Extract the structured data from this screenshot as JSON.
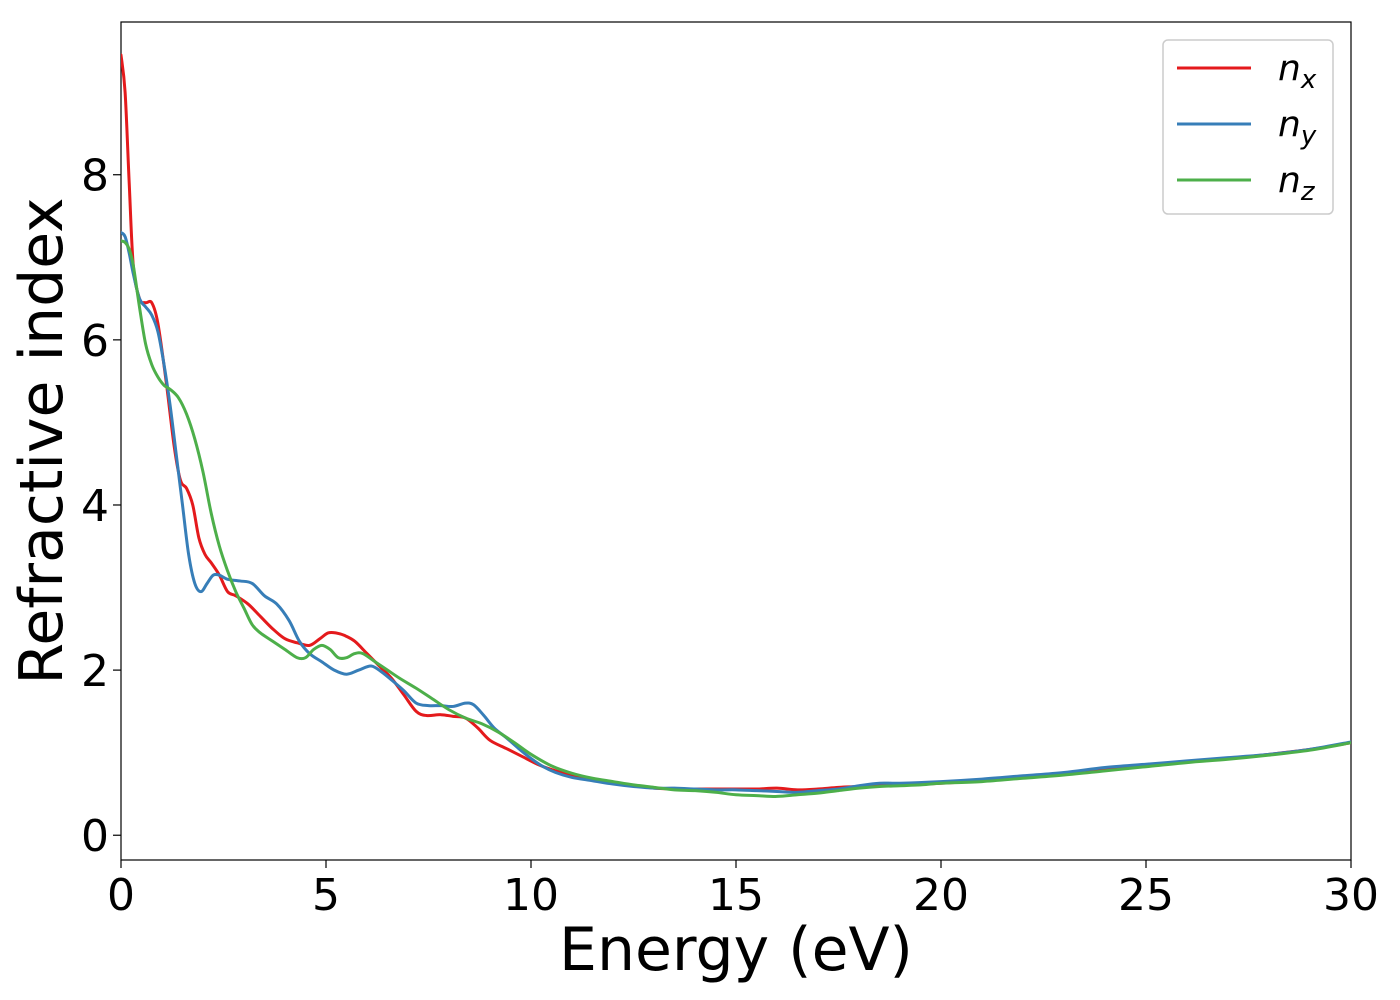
{
  "chart_data": {
    "type": "line",
    "xlabel": "Energy (eV)",
    "ylabel": "Refractive index",
    "xlim": [
      0,
      30
    ],
    "ylim": [
      -0.3,
      9.85
    ],
    "xticks": [
      0,
      5,
      10,
      15,
      20,
      25,
      30
    ],
    "yticks": [
      0,
      2,
      4,
      6,
      8
    ],
    "grid": false,
    "legend_position": "top-right",
    "series": [
      {
        "name": "n",
        "subscript": "x",
        "color": "#e41a1c",
        "x": [
          0,
          0.1,
          0.2,
          0.3,
          0.45,
          0.6,
          0.75,
          0.9,
          1.1,
          1.3,
          1.45,
          1.6,
          1.75,
          1.9,
          2.05,
          2.2,
          2.4,
          2.6,
          2.8,
          3.1,
          3.4,
          3.7,
          4.0,
          4.3,
          4.6,
          4.85,
          5.05,
          5.25,
          5.45,
          5.7,
          6.0,
          6.3,
          6.6,
          6.9,
          7.2,
          7.45,
          7.8,
          8.1,
          8.4,
          8.7,
          9.0,
          9.4,
          9.8,
          10.2,
          10.6,
          11.0,
          11.5,
          12.0,
          12.5,
          13.0,
          13.5,
          14.0,
          14.5,
          15.0,
          15.5,
          16.0,
          16.5,
          17.0,
          17.5,
          18.0,
          18.5,
          19.0,
          19.5,
          20.0,
          21.0,
          22.0,
          23.0,
          24.0,
          25.0,
          26.0,
          27.0,
          28.0,
          29.0,
          30.0
        ],
        "values": [
          9.45,
          9.0,
          7.9,
          6.9,
          6.5,
          6.45,
          6.45,
          6.2,
          5.5,
          4.7,
          4.3,
          4.2,
          4.0,
          3.6,
          3.4,
          3.3,
          3.15,
          2.95,
          2.9,
          2.8,
          2.65,
          2.5,
          2.38,
          2.33,
          2.3,
          2.38,
          2.45,
          2.45,
          2.42,
          2.35,
          2.2,
          2.05,
          1.9,
          1.7,
          1.5,
          1.45,
          1.46,
          1.44,
          1.42,
          1.3,
          1.15,
          1.05,
          0.95,
          0.85,
          0.78,
          0.73,
          0.68,
          0.64,
          0.6,
          0.57,
          0.56,
          0.56,
          0.56,
          0.56,
          0.56,
          0.57,
          0.55,
          0.56,
          0.58,
          0.59,
          0.6,
          0.61,
          0.62,
          0.63,
          0.66,
          0.7,
          0.75,
          0.8,
          0.85,
          0.89,
          0.93,
          0.98,
          1.04,
          1.12
        ]
      },
      {
        "name": "n",
        "subscript": "y",
        "color": "#377eb8",
        "x": [
          0,
          0.1,
          0.2,
          0.3,
          0.45,
          0.6,
          0.75,
          0.9,
          1.05,
          1.2,
          1.35,
          1.5,
          1.65,
          1.8,
          1.95,
          2.1,
          2.25,
          2.4,
          2.6,
          2.9,
          3.2,
          3.5,
          3.8,
          4.1,
          4.35,
          4.6,
          4.9,
          5.2,
          5.5,
          5.8,
          6.1,
          6.35,
          6.6,
          6.9,
          7.2,
          7.5,
          7.8,
          8.1,
          8.4,
          8.6,
          8.85,
          9.1,
          9.4,
          9.7,
          10.0,
          10.3,
          10.6,
          11.0,
          11.5,
          12.0,
          12.5,
          13.0,
          13.5,
          14.0,
          14.5,
          15.0,
          15.5,
          16.0,
          16.5,
          17.0,
          17.5,
          18.0,
          18.5,
          19.0,
          20.0,
          21.0,
          22.0,
          23.0,
          24.0,
          25.0,
          26.0,
          27.0,
          28.0,
          29.0,
          30.0
        ],
        "values": [
          7.3,
          7.25,
          7.05,
          6.8,
          6.5,
          6.4,
          6.3,
          6.1,
          5.7,
          5.2,
          4.6,
          4.0,
          3.4,
          3.05,
          2.95,
          3.05,
          3.15,
          3.15,
          3.1,
          3.08,
          3.05,
          2.9,
          2.8,
          2.6,
          2.35,
          2.2,
          2.1,
          2.0,
          1.95,
          2.0,
          2.05,
          1.98,
          1.88,
          1.75,
          1.6,
          1.57,
          1.57,
          1.56,
          1.6,
          1.58,
          1.45,
          1.3,
          1.18,
          1.05,
          0.93,
          0.83,
          0.76,
          0.7,
          0.66,
          0.62,
          0.59,
          0.57,
          0.57,
          0.56,
          0.55,
          0.55,
          0.54,
          0.53,
          0.52,
          0.54,
          0.56,
          0.6,
          0.63,
          0.63,
          0.65,
          0.68,
          0.72,
          0.76,
          0.82,
          0.86,
          0.9,
          0.94,
          0.98,
          1.04,
          1.13
        ]
      },
      {
        "name": "n",
        "subscript": "z",
        "color": "#4daf4a",
        "x": [
          0,
          0.1,
          0.2,
          0.3,
          0.45,
          0.6,
          0.75,
          0.9,
          1.05,
          1.2,
          1.4,
          1.6,
          1.8,
          2.0,
          2.2,
          2.4,
          2.6,
          2.8,
          3.0,
          3.2,
          3.4,
          3.7,
          4.0,
          4.3,
          4.5,
          4.7,
          4.9,
          5.1,
          5.3,
          5.5,
          5.7,
          5.9,
          6.2,
          6.5,
          6.8,
          7.2,
          7.6,
          8.0,
          8.4,
          8.8,
          9.2,
          9.6,
          10.0,
          10.5,
          11.0,
          11.5,
          12.0,
          12.5,
          13.0,
          13.5,
          14.0,
          14.5,
          15.0,
          15.5,
          16.0,
          16.5,
          17.0,
          17.5,
          18.0,
          18.5,
          19.0,
          19.5,
          20.0,
          21.0,
          22.0,
          23.0,
          24.0,
          25.0,
          26.0,
          27.0,
          28.0,
          29.0,
          30.0
        ],
        "values": [
          7.2,
          7.18,
          7.1,
          6.9,
          6.4,
          5.95,
          5.7,
          5.55,
          5.45,
          5.4,
          5.3,
          5.1,
          4.8,
          4.4,
          3.9,
          3.5,
          3.2,
          2.95,
          2.75,
          2.55,
          2.45,
          2.35,
          2.25,
          2.15,
          2.15,
          2.25,
          2.3,
          2.25,
          2.15,
          2.15,
          2.2,
          2.2,
          2.1,
          2.0,
          1.9,
          1.78,
          1.65,
          1.52,
          1.42,
          1.35,
          1.25,
          1.12,
          0.98,
          0.84,
          0.75,
          0.69,
          0.65,
          0.61,
          0.58,
          0.55,
          0.54,
          0.52,
          0.49,
          0.48,
          0.47,
          0.49,
          0.51,
          0.54,
          0.57,
          0.59,
          0.6,
          0.61,
          0.63,
          0.65,
          0.69,
          0.73,
          0.78,
          0.83,
          0.88,
          0.92,
          0.97,
          1.03,
          1.12
        ]
      }
    ]
  }
}
